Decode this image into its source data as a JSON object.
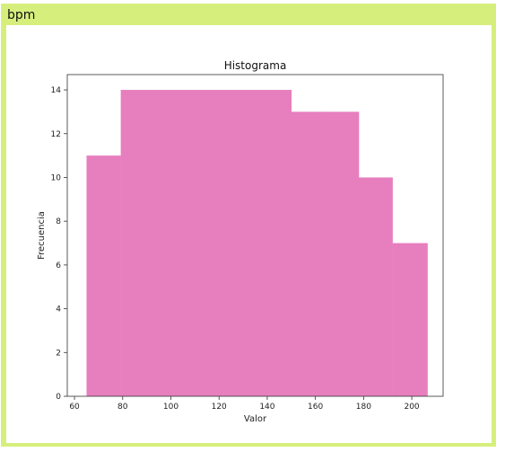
{
  "panel": {
    "title": "bpm"
  },
  "chart_data": {
    "type": "histogram",
    "title": "Histograma",
    "xlabel": "Valor",
    "ylabel": "Frecuencia",
    "bar_color": "#e77fbe",
    "xlim": [
      57,
      213
    ],
    "ylim": [
      0,
      14.7
    ],
    "xticks": [
      60,
      80,
      100,
      120,
      140,
      160,
      180,
      200
    ],
    "yticks": [
      0,
      2,
      4,
      6,
      8,
      10,
      12,
      14
    ],
    "bins": [
      {
        "x0": 65,
        "x1": 79.2,
        "count": 11
      },
      {
        "x0": 79.2,
        "x1": 93.4,
        "count": 14
      },
      {
        "x0": 93.4,
        "x1": 107.6,
        "count": 14
      },
      {
        "x0": 107.6,
        "x1": 121.8,
        "count": 14
      },
      {
        "x0": 121.8,
        "x1": 136,
        "count": 14
      },
      {
        "x0": 136,
        "x1": 150,
        "count": 14
      },
      {
        "x0": 150,
        "x1": 164,
        "count": 13
      },
      {
        "x0": 164,
        "x1": 178,
        "count": 13
      },
      {
        "x0": 178,
        "x1": 192,
        "count": 10
      },
      {
        "x0": 192,
        "x1": 206.5,
        "count": 7
      }
    ]
  }
}
